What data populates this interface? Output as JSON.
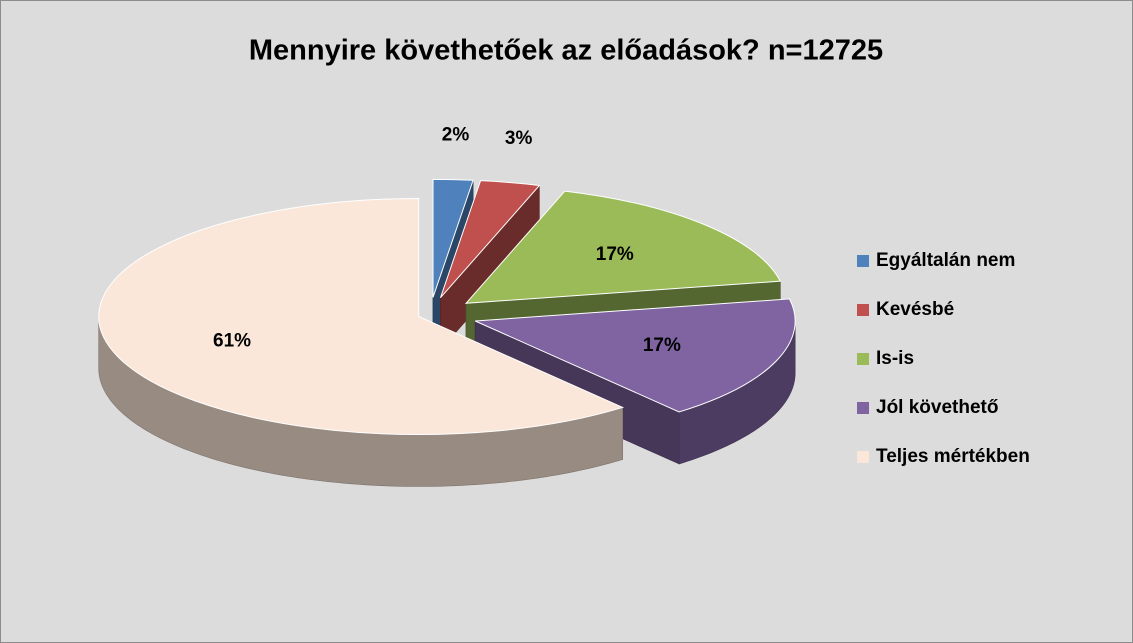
{
  "chart_data": {
    "type": "pie3d",
    "title": "Mennyire követhetőek az előadások? n=12725",
    "categories": [
      "Egyáltalán nem",
      "Kevésbé",
      "Is-is",
      "Jól követhető",
      "Teljes mértékben"
    ],
    "values": [
      2,
      3,
      17,
      17,
      61
    ],
    "value_labels": [
      "2%",
      "3%",
      "17%",
      "17%",
      "61%"
    ],
    "colors": [
      "#4f81bd",
      "#c0504d",
      "#9bbb59",
      "#8064a2",
      "#fbe7d9"
    ],
    "legend": "right"
  }
}
